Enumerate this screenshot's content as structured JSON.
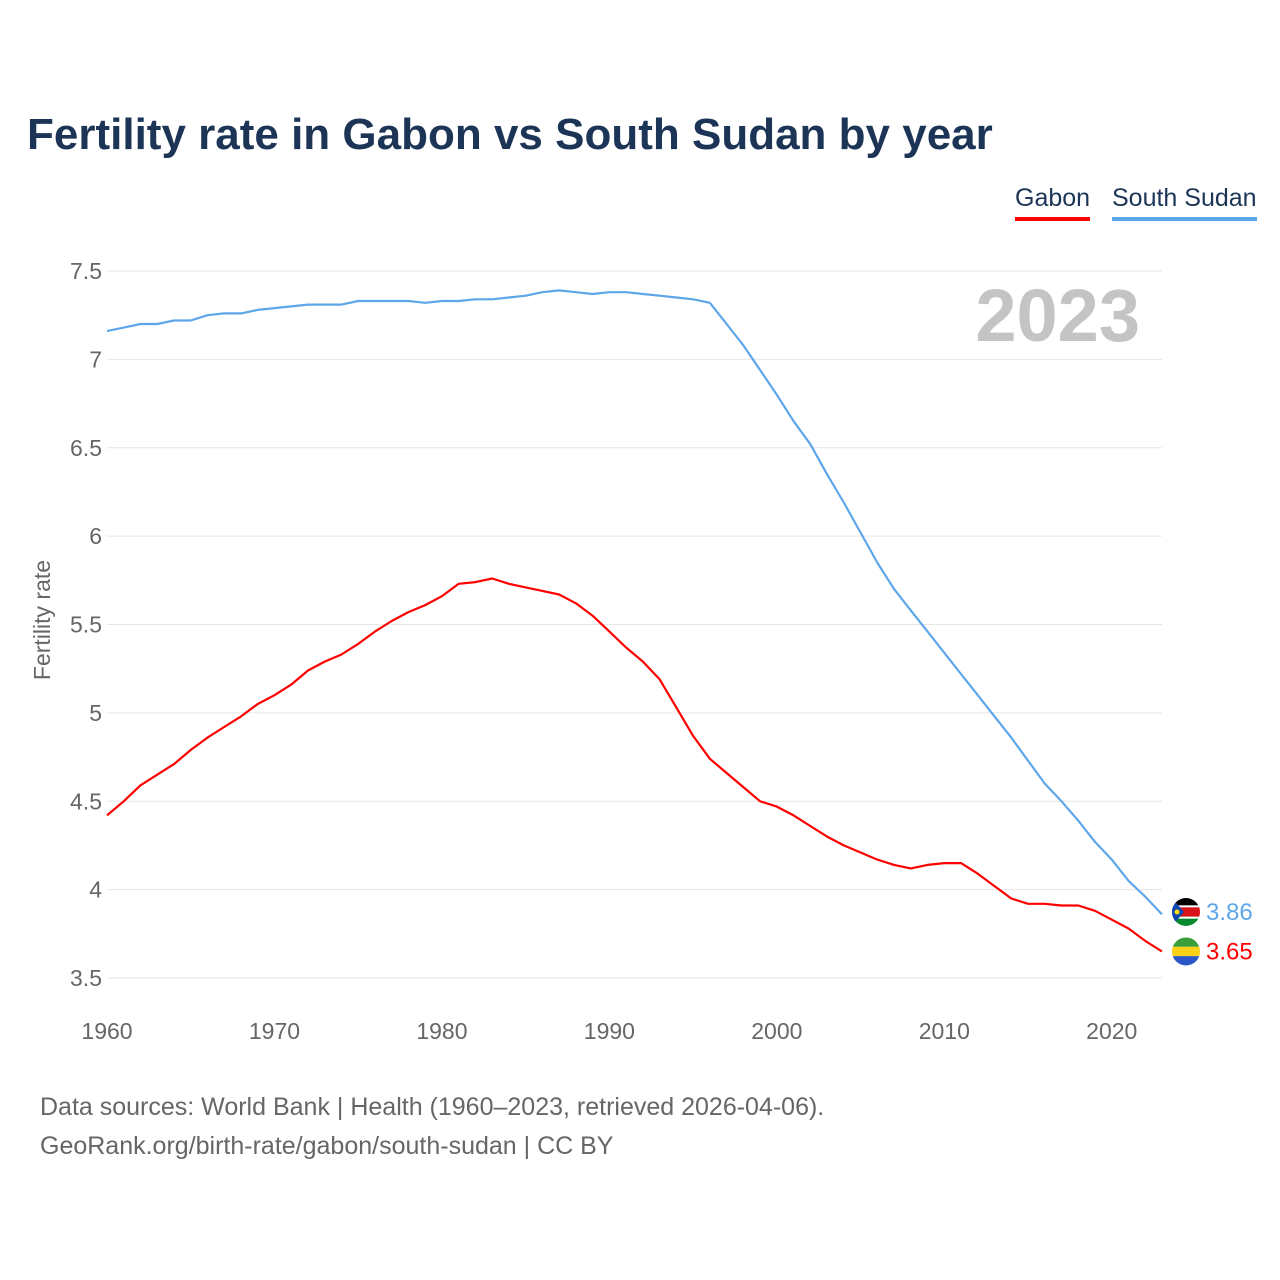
{
  "chart_data": {
    "type": "line",
    "title": "Fertility rate in Gabon vs South Sudan by year",
    "ylabel": "Fertility rate",
    "xlabel": "",
    "xlim": [
      1960,
      2023
    ],
    "ylim": [
      3.5,
      7.5
    ],
    "grid": true,
    "legend_position": "top-right",
    "x_ticks": [
      "1960",
      "1970",
      "1980",
      "1990",
      "2000",
      "2010",
      "2020"
    ],
    "y_ticks": [
      "3.5",
      "4",
      "4.5",
      "5",
      "5.5",
      "6",
      "6.5",
      "7",
      "7.5"
    ],
    "year_label": "2023",
    "x_start": 1960,
    "series": [
      {
        "name": "Gabon",
        "color": "#ff0000",
        "end_label": "3.65",
        "flag": "gabon-flag",
        "values": [
          4.42,
          4.5,
          4.59,
          4.65,
          4.71,
          4.79,
          4.86,
          4.92,
          4.98,
          5.05,
          5.1,
          5.16,
          5.24,
          5.29,
          5.33,
          5.39,
          5.46,
          5.52,
          5.57,
          5.61,
          5.66,
          5.73,
          5.74,
          5.76,
          5.73,
          5.71,
          5.69,
          5.67,
          5.62,
          5.55,
          5.46,
          5.37,
          5.29,
          5.19,
          5.03,
          4.87,
          4.74,
          4.66,
          4.58,
          4.5,
          4.47,
          4.42,
          4.36,
          4.3,
          4.25,
          4.21,
          4.17,
          4.14,
          4.12,
          4.14,
          4.15,
          4.15,
          4.09,
          4.02,
          3.95,
          3.92,
          3.92,
          3.91,
          3.91,
          3.88,
          3.83,
          3.78,
          3.71,
          3.65
        ]
      },
      {
        "name": "South Sudan",
        "color": "#5ea6ea",
        "end_label": "3.86",
        "flag": "south-sudan-flag",
        "values": [
          7.16,
          7.18,
          7.2,
          7.2,
          7.22,
          7.22,
          7.25,
          7.26,
          7.26,
          7.28,
          7.29,
          7.3,
          7.31,
          7.31,
          7.31,
          7.33,
          7.33,
          7.33,
          7.33,
          7.32,
          7.33,
          7.33,
          7.34,
          7.34,
          7.35,
          7.36,
          7.38,
          7.39,
          7.38,
          7.37,
          7.38,
          7.38,
          7.37,
          7.36,
          7.35,
          7.34,
          7.32,
          7.2,
          7.08,
          6.94,
          6.8,
          6.65,
          6.52,
          6.35,
          6.19,
          6.02,
          5.85,
          5.7,
          5.58,
          5.46,
          5.34,
          5.22,
          5.1,
          4.98,
          4.86,
          4.73,
          4.6,
          4.5,
          4.39,
          4.27,
          4.17,
          4.05,
          3.96,
          3.86
        ]
      }
    ]
  },
  "footer": {
    "line1": "Data sources: World Bank | Health (1960–2023, retrieved 2026-04-06).",
    "line2": "GeoRank.org/birth-rate/gabon/south-sudan | CC BY"
  }
}
